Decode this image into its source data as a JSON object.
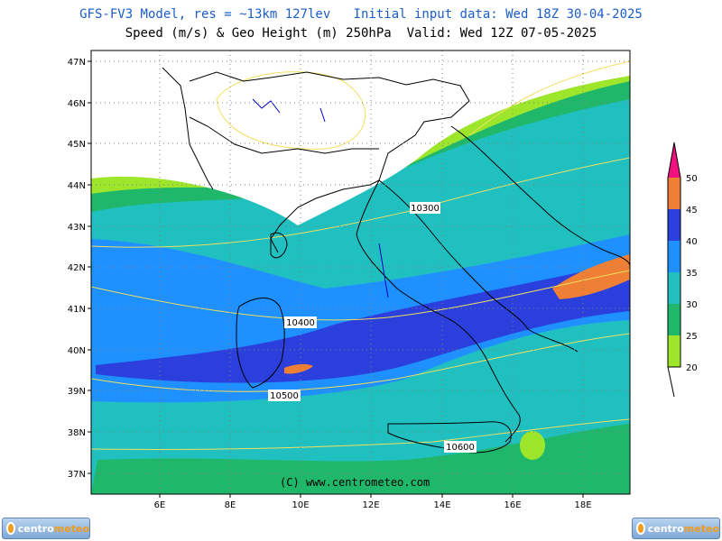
{
  "header": {
    "line1": "GFS-FV3 Model, res = ~13km 127lev   Initial input data: Wed 18Z 30-04-2025",
    "line2": "Speed (m/s) & Geo Height (m) 250hPa  Valid: Wed 12Z 07-05-2025"
  },
  "map": {
    "region": "Italy and surrounding seas",
    "lat_labels": [
      "47N",
      "46N",
      "45N",
      "44N",
      "43N",
      "42N",
      "41N",
      "40N",
      "39N",
      "38N",
      "37N"
    ],
    "lon_labels": [
      "6E",
      "8E",
      "10E",
      "12E",
      "14E",
      "16E",
      "18E"
    ],
    "contour_labels": [
      "10300",
      "10400",
      "10500",
      "10600"
    ],
    "copyright": "(C) www.centrometeo.com"
  },
  "colorbar": {
    "labels": [
      "50",
      "45",
      "40",
      "35",
      "30",
      "25",
      "20"
    ],
    "colors": {
      "20-25": "#9ee62c",
      "25-30": "#1fb86b",
      "30-35": "#21c0c0",
      "35-40": "#1e90ff",
      "40-45": "#2a3fdc",
      "45-50": "#ef7f34",
      "50+": "#f0107e"
    }
  },
  "colors": {
    "land": "#ffffff",
    "coast": "#000000",
    "rivers": "#0000c8",
    "height_contours": "#f0e060",
    "grid": "#7f7f7f"
  },
  "logos": [
    {
      "text_a": "centro",
      "text_b": "meteo"
    },
    {
      "text_a": "centro",
      "text_b": "meteo"
    }
  ]
}
